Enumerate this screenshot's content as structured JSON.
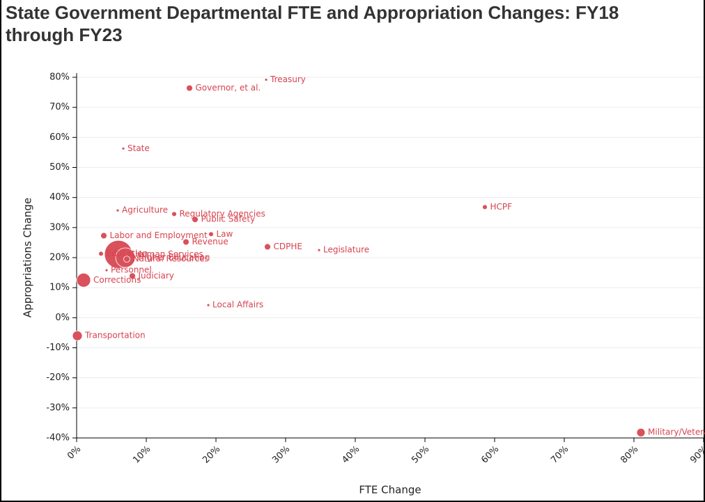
{
  "chart_data": {
    "type": "scatter",
    "title": "State Government Departmental FTE and Appropriation Changes: FY18 through FY23",
    "xlabel": "FTE Change",
    "ylabel": "Appropriations Change",
    "color": "#d9515b",
    "grid": true,
    "labels": [
      "Treasury",
      "Governor, et al.",
      "State",
      "HCPF",
      "Agriculture",
      "Regulatory Agencies",
      "Public Safety",
      "Law",
      "Labor and Employment",
      "Revenue",
      "CDPHE",
      "Legislature",
      "Human Services",
      "Education",
      "Higher Education",
      "Natural Resources",
      "Personnel",
      "Judiciary",
      "Corrections",
      "Local Affairs",
      "Transportation",
      "Military/Veterans Affairs"
    ],
    "x": [
      27.2,
      16.2,
      6.7,
      58.6,
      5.9,
      14.0,
      17.0,
      19.3,
      3.9,
      15.7,
      27.4,
      34.8,
      6.0,
      3.5,
      7.0,
      7.2,
      4.3,
      8.0,
      1.0,
      18.9,
      0.1,
      81.0
    ],
    "values": [
      79.2,
      76.4,
      56.3,
      36.8,
      35.7,
      34.5,
      32.7,
      27.8,
      27.3,
      25.2,
      23.6,
      22.5,
      21.1,
      21.3,
      20.0,
      19.5,
      15.8,
      13.9,
      12.5,
      4.2,
      -6.0,
      -38.2
    ],
    "sizes": [
      50,
      250,
      50,
      150,
      50,
      150,
      250,
      150,
      250,
      250,
      250,
      50,
      5000,
      150,
      2450,
      250,
      50,
      250,
      1250,
      50,
      610,
      450
    ],
    "xlim": [
      0,
      90
    ],
    "xticks": [
      {
        "value": 0,
        "label": "0%"
      },
      {
        "value": 10,
        "label": "10%"
      },
      {
        "value": 20,
        "label": "20%"
      },
      {
        "value": 30,
        "label": "30%"
      },
      {
        "value": 40,
        "label": "40%"
      },
      {
        "value": 50,
        "label": "50%"
      },
      {
        "value": 60,
        "label": "60%"
      },
      {
        "value": 70,
        "label": "70%"
      },
      {
        "value": 80,
        "label": "80%"
      },
      {
        "value": 90,
        "label": "90%"
      }
    ],
    "ylim": [
      -40,
      80
    ],
    "yticks": [
      {
        "value": -40,
        "label": "-40%"
      },
      {
        "value": -30,
        "label": "-30%"
      },
      {
        "value": -20,
        "label": "-20%"
      },
      {
        "value": -10,
        "label": "-10%"
      },
      {
        "value": 0,
        "label": "0%"
      },
      {
        "value": 10,
        "label": "10%"
      },
      {
        "value": 20,
        "label": "20%"
      },
      {
        "value": 30,
        "label": "30%"
      },
      {
        "value": 40,
        "label": "40%"
      },
      {
        "value": 50,
        "label": "50%"
      },
      {
        "value": 60,
        "label": "60%"
      },
      {
        "value": 70,
        "label": "70%"
      },
      {
        "value": 80,
        "label": "80%"
      }
    ]
  }
}
